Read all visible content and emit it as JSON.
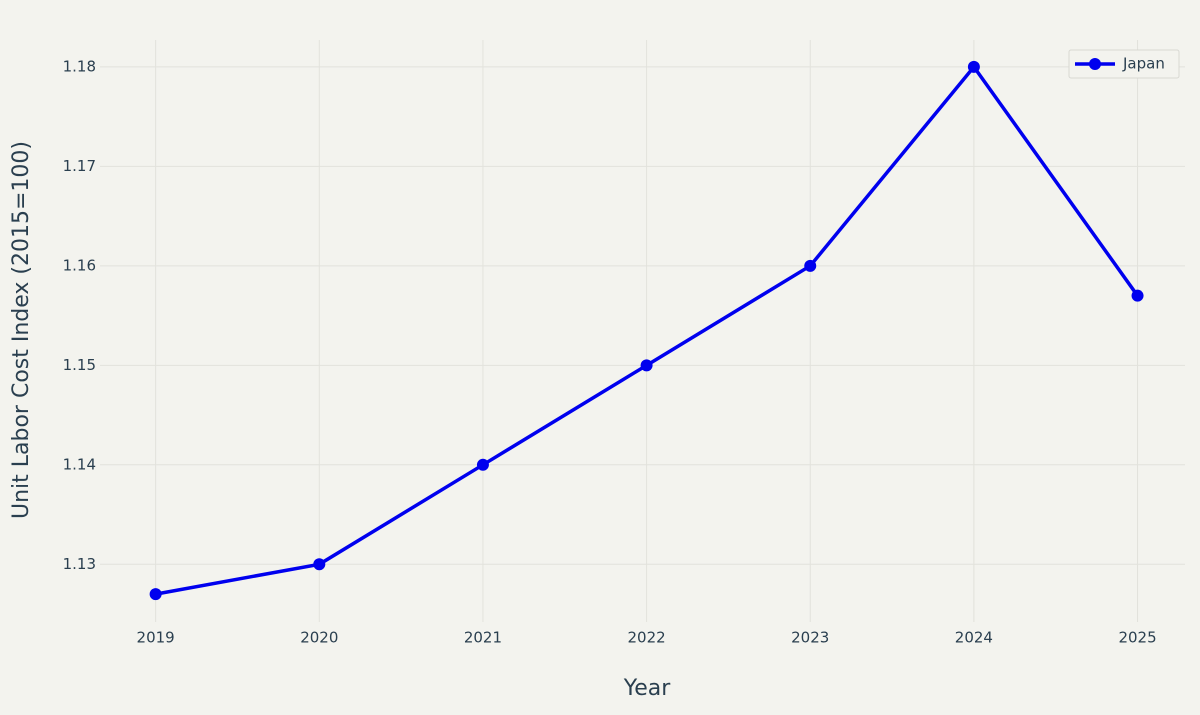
{
  "chart_data": {
    "type": "line",
    "x_label": "Year",
    "y_label": "Unit Labor Cost Index (2015=100)",
    "x": [
      2019,
      2020,
      2021,
      2022,
      2023,
      2024,
      2025
    ],
    "series": [
      {
        "name": "Japan",
        "color": "#0000ee",
        "values": [
          1.127,
          1.13,
          1.14,
          1.15,
          1.16,
          1.18,
          1.157
        ]
      }
    ],
    "xlim": [
      2018.66,
      2025.29
    ],
    "xticks": [
      2019,
      2020,
      2021,
      2022,
      2023,
      2024,
      2025
    ],
    "ylim": [
      1.1242,
      1.1827
    ],
    "yticks": [
      1.13,
      1.14,
      1.15,
      1.16,
      1.17,
      1.18
    ],
    "grid": true,
    "legend": "top-right"
  }
}
